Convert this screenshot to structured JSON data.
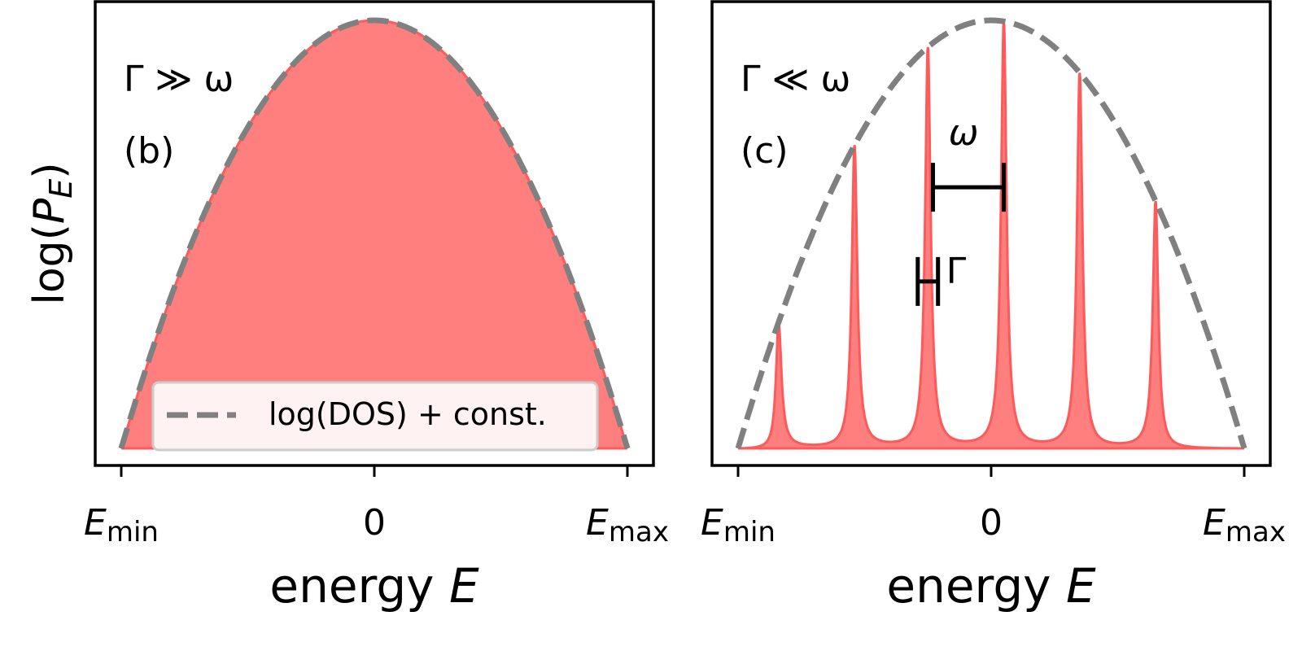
{
  "colors": {
    "fill": "#ff7f7f",
    "line": "#ff5a5a",
    "dos": "#808080",
    "frame": "#000000"
  },
  "y_label": {
    "prefix": "log(",
    "var": "P",
    "sub": "E",
    "suffix": ")"
  },
  "chart_data": [
    {
      "type": "area",
      "panel": "(b)",
      "regime": "Γ ≫ ω",
      "xlabel": {
        "text": "energy",
        "var": "E"
      },
      "ylabel": "log(P_E)",
      "x_ticks": [
        {
          "value": -1,
          "main": "E",
          "sub": "min"
        },
        {
          "value": 0,
          "main": "0",
          "sub": ""
        },
        {
          "value": 1,
          "main": "E",
          "sub": "max"
        }
      ],
      "xlim": [
        -1.1,
        1.1
      ],
      "ylim": [
        -0.05,
        1.05
      ],
      "dos_curve": {
        "form": "1 - x^2",
        "style": "dashed",
        "label": "log(DOS) + const."
      },
      "fill_curve": {
        "form": "follows DOS (broad, Γ ≫ ω)",
        "peaks": []
      },
      "legend": {
        "label": "log(DOS) + const.",
        "location": "lower-center"
      }
    },
    {
      "type": "area",
      "panel": "(c)",
      "regime": "Γ ≪ ω",
      "xlabel": {
        "text": "energy",
        "var": "E"
      },
      "x_ticks": [
        {
          "value": -1,
          "main": "E",
          "sub": "min"
        },
        {
          "value": 0,
          "main": "0",
          "sub": ""
        },
        {
          "value": 1,
          "main": "E",
          "sub": "max"
        }
      ],
      "xlim": [
        -1.1,
        1.1
      ],
      "ylim": [
        -0.05,
        1.05
      ],
      "dos_curve": {
        "form": "1 - x^2",
        "style": "dashed"
      },
      "fill_curve": {
        "form": "sum of Lorentzian peaks on DOS envelope",
        "peaks": [
          -0.84,
          -0.54,
          -0.25,
          0.05,
          0.35,
          0.65
        ],
        "peak_width_gamma": 0.013,
        "baseline_at_edge": 0.0
      },
      "annotations": [
        {
          "label": "ω",
          "kind": "spacing",
          "x_from": -0.23,
          "x_to": 0.05,
          "y": 0.61
        },
        {
          "label": "Γ",
          "kind": "width",
          "x_from": -0.29,
          "x_to": -0.21,
          "y": 0.39
        }
      ]
    }
  ]
}
